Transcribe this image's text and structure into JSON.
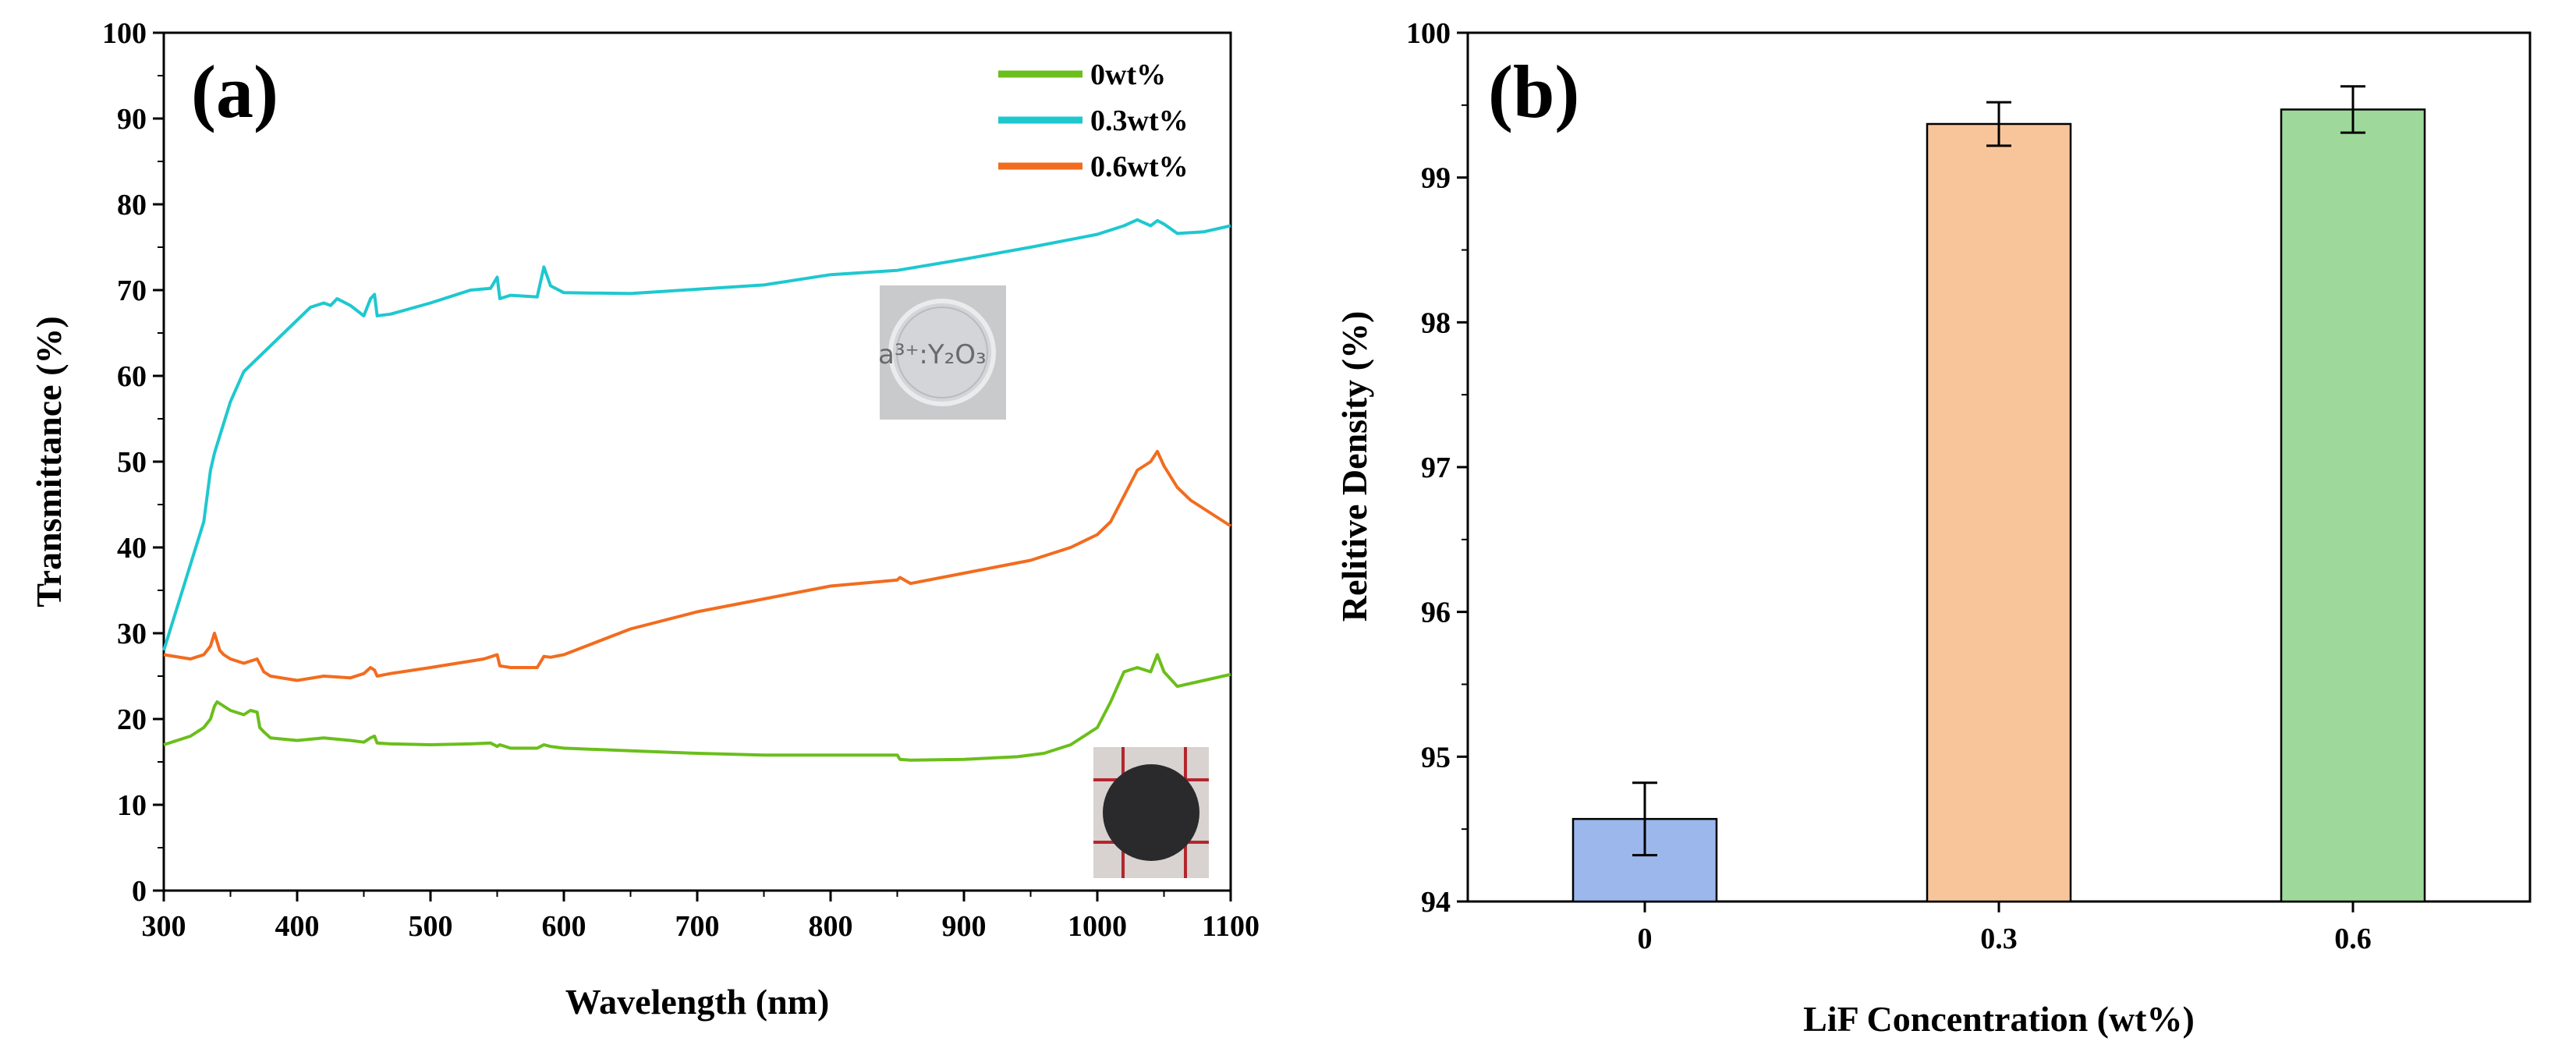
{
  "chart_data": [
    {
      "panel_label": "(a)",
      "type": "line",
      "xlabel": "Wavelength (nm)",
      "ylabel": "Transmittance (%)",
      "xlim": [
        300,
        1100
      ],
      "ylim": [
        0,
        100
      ],
      "xticks": [
        300,
        400,
        500,
        600,
        700,
        800,
        900,
        1000,
        1100
      ],
      "yticks": [
        0,
        10,
        20,
        30,
        40,
        50,
        60,
        70,
        80,
        90,
        100
      ],
      "legend_position": "top-right",
      "inset_text": "a³⁺:Y₂O₃",
      "series": [
        {
          "name": "0wt%",
          "color": "#6abf1a",
          "x": [
            300,
            320,
            330,
            335,
            338,
            340,
            345,
            350,
            360,
            365,
            370,
            372,
            375,
            380,
            400,
            420,
            440,
            450,
            455,
            458,
            460,
            470,
            500,
            530,
            545,
            550,
            552,
            560,
            580,
            585,
            590,
            600,
            650,
            700,
            750,
            800,
            850,
            852,
            860,
            900,
            940,
            960,
            980,
            1000,
            1010,
            1020,
            1030,
            1040,
            1045,
            1050,
            1060,
            1080,
            1100
          ],
          "y": [
            17,
            18,
            19,
            20,
            21.5,
            22,
            21.5,
            21,
            20.5,
            21,
            20.8,
            19,
            18.5,
            17.8,
            17.5,
            17.8,
            17.5,
            17.3,
            17.8,
            18,
            17.2,
            17.1,
            17,
            17.1,
            17.2,
            16.8,
            17,
            16.6,
            16.6,
            17,
            16.8,
            16.6,
            16.3,
            16,
            15.8,
            15.8,
            15.8,
            15.3,
            15.2,
            15.3,
            15.6,
            16,
            17,
            19,
            22,
            25.5,
            26,
            25.5,
            27.5,
            25.5,
            23.8,
            24.5,
            25.2
          ]
        },
        {
          "name": "0.3wt%",
          "color": "#1ec8cf",
          "x": [
            300,
            310,
            320,
            330,
            335,
            338,
            342,
            350,
            360,
            370,
            380,
            390,
            400,
            410,
            420,
            425,
            430,
            440,
            450,
            455,
            458,
            460,
            470,
            500,
            530,
            545,
            550,
            552,
            560,
            580,
            585,
            590,
            600,
            650,
            700,
            750,
            800,
            850,
            900,
            950,
            1000,
            1020,
            1030,
            1040,
            1045,
            1050,
            1060,
            1080,
            1100
          ],
          "y": [
            28,
            33,
            38,
            43,
            49,
            51,
            53,
            57,
            60.5,
            62,
            63.5,
            65,
            66.5,
            68,
            68.5,
            68.2,
            69,
            68.2,
            67,
            69,
            69.5,
            67,
            67.2,
            68.5,
            70,
            70.2,
            71.5,
            69,
            69.4,
            69.2,
            72.7,
            70.5,
            69.7,
            69.6,
            70.1,
            70.6,
            71.8,
            72.3,
            73.6,
            75,
            76.5,
            77.5,
            78.2,
            77.5,
            78.1,
            77.7,
            76.6,
            76.8,
            77.5
          ]
        },
        {
          "name": "0.6wt%",
          "color": "#f26c1f",
          "x": [
            300,
            320,
            330,
            335,
            338,
            342,
            345,
            350,
            360,
            370,
            375,
            380,
            400,
            420,
            440,
            450,
            455,
            458,
            460,
            470,
            500,
            540,
            550,
            552,
            560,
            580,
            585,
            590,
            600,
            650,
            700,
            750,
            800,
            850,
            852,
            860,
            900,
            950,
            980,
            1000,
            1010,
            1020,
            1030,
            1040,
            1045,
            1050,
            1060,
            1070,
            1080,
            1090,
            1100
          ],
          "y": [
            27.5,
            27,
            27.5,
            28.5,
            30,
            28,
            27.5,
            27,
            26.5,
            27,
            25.5,
            25,
            24.5,
            25,
            24.8,
            25.3,
            26,
            25.7,
            25,
            25.3,
            26,
            27,
            27.5,
            26.2,
            26,
            26,
            27.3,
            27.2,
            27.5,
            30.5,
            32.5,
            34,
            35.5,
            36.2,
            36.5,
            35.8,
            37,
            38.5,
            40,
            41.5,
            43,
            46,
            49,
            50,
            51.2,
            49.5,
            47,
            45.5,
            44.5,
            43.5,
            42.5
          ]
        }
      ]
    },
    {
      "panel_label": "(b)",
      "type": "bar",
      "xlabel": "LiF Concentration (wt%)",
      "ylabel": "Relitive Density (%)",
      "categories": [
        "0",
        "0.3",
        "0.6"
      ],
      "values": [
        94.57,
        99.37,
        99.47
      ],
      "errors": [
        0.25,
        0.15,
        0.16
      ],
      "colors": [
        "#9bb7ec",
        "#f8c59a",
        "#9ed99b"
      ],
      "ylim": [
        94,
        100
      ],
      "yticks": [
        94,
        95,
        96,
        97,
        98,
        99,
        100
      ]
    }
  ]
}
